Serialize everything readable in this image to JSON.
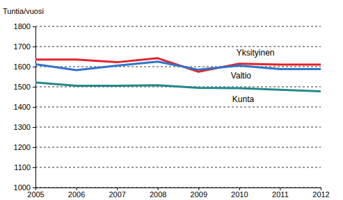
{
  "chart_data": {
    "type": "line",
    "y_label": "Tuntia/vuosi",
    "x": [
      2005,
      2006,
      2007,
      2008,
      2009,
      2010,
      2011,
      2012
    ],
    "xlim": [
      2005,
      2012
    ],
    "xticks": [
      2005,
      2006,
      2007,
      2008,
      2009,
      2010,
      2011,
      2012
    ],
    "ylim": [
      1000,
      1800
    ],
    "yticks": [
      1000,
      1100,
      1200,
      1300,
      1400,
      1500,
      1600,
      1700,
      1800
    ],
    "grid": true,
    "series": [
      {
        "name": "Yksityinen",
        "color": "#e3232c",
        "values": [
          1635,
          1635,
          1622,
          1642,
          1575,
          1615,
          1610,
          1610
        ]
      },
      {
        "name": "Valtio",
        "color": "#2f74c9",
        "values": [
          1612,
          1583,
          1605,
          1625,
          1585,
          1605,
          1588,
          1588
        ]
      },
      {
        "name": "Kunta",
        "color": "#23888a",
        "values": [
          1522,
          1505,
          1505,
          1508,
          1495,
          1493,
          1485,
          1478
        ]
      }
    ]
  }
}
